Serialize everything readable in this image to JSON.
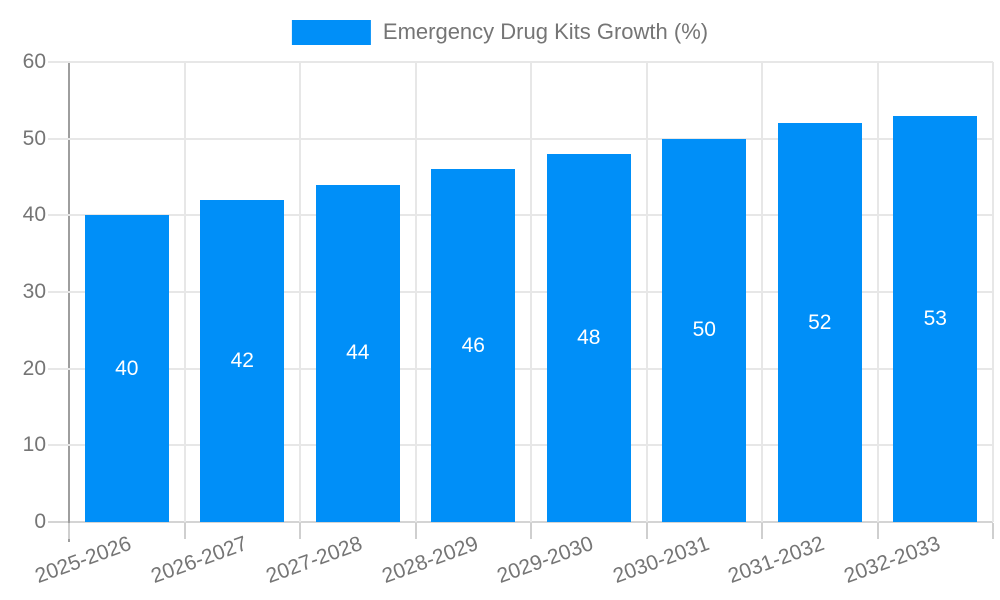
{
  "chart_data": {
    "type": "bar",
    "title": "Emergency Drug Kits Growth (%)",
    "categories": [
      "2025-2026",
      "2026-2027",
      "2027-2028",
      "2028-2029",
      "2029-2030",
      "2030-2031",
      "2031-2032",
      "2032-2033"
    ],
    "values": [
      40,
      42,
      44,
      46,
      48,
      50,
      52,
      53
    ],
    "xlabel": "",
    "ylabel": "",
    "ylim": [
      0,
      60
    ],
    "yticks": [
      0,
      10,
      20,
      30,
      40,
      50,
      60
    ],
    "grid": true,
    "legend_position": "top-center",
    "bar_color": "#008FF8",
    "value_label_color": "#FFFFFF",
    "axis_text_color": "#757575",
    "grid_color": "#E7E7E7",
    "axis_line_color": "#9E9E9E",
    "bottom_line_color": "#D4D4D4"
  }
}
